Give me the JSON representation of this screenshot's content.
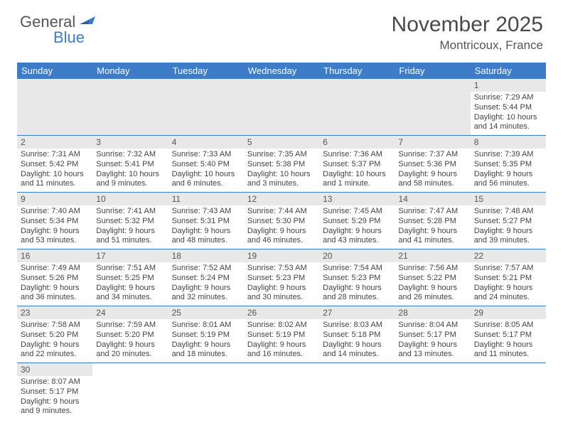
{
  "brand": {
    "general": "General",
    "blue": "Blue"
  },
  "title": "November 2025",
  "location": "Montricoux, France",
  "weekdays": [
    "Sunday",
    "Monday",
    "Tuesday",
    "Wednesday",
    "Thursday",
    "Friday",
    "Saturday"
  ],
  "colors": {
    "header_bg": "#3d7cc9",
    "daynum_bg": "#e8e8e8",
    "text": "#444444"
  },
  "days": {
    "1": {
      "sunrise": "7:29 AM",
      "sunset": "5:44 PM",
      "daylight": "10 hours and 14 minutes."
    },
    "2": {
      "sunrise": "7:31 AM",
      "sunset": "5:42 PM",
      "daylight": "10 hours and 11 minutes."
    },
    "3": {
      "sunrise": "7:32 AM",
      "sunset": "5:41 PM",
      "daylight": "10 hours and 9 minutes."
    },
    "4": {
      "sunrise": "7:33 AM",
      "sunset": "5:40 PM",
      "daylight": "10 hours and 6 minutes."
    },
    "5": {
      "sunrise": "7:35 AM",
      "sunset": "5:38 PM",
      "daylight": "10 hours and 3 minutes."
    },
    "6": {
      "sunrise": "7:36 AM",
      "sunset": "5:37 PM",
      "daylight": "10 hours and 1 minute."
    },
    "7": {
      "sunrise": "7:37 AM",
      "sunset": "5:36 PM",
      "daylight": "9 hours and 58 minutes."
    },
    "8": {
      "sunrise": "7:39 AM",
      "sunset": "5:35 PM",
      "daylight": "9 hours and 56 minutes."
    },
    "9": {
      "sunrise": "7:40 AM",
      "sunset": "5:34 PM",
      "daylight": "9 hours and 53 minutes."
    },
    "10": {
      "sunrise": "7:41 AM",
      "sunset": "5:32 PM",
      "daylight": "9 hours and 51 minutes."
    },
    "11": {
      "sunrise": "7:43 AM",
      "sunset": "5:31 PM",
      "daylight": "9 hours and 48 minutes."
    },
    "12": {
      "sunrise": "7:44 AM",
      "sunset": "5:30 PM",
      "daylight": "9 hours and 46 minutes."
    },
    "13": {
      "sunrise": "7:45 AM",
      "sunset": "5:29 PM",
      "daylight": "9 hours and 43 minutes."
    },
    "14": {
      "sunrise": "7:47 AM",
      "sunset": "5:28 PM",
      "daylight": "9 hours and 41 minutes."
    },
    "15": {
      "sunrise": "7:48 AM",
      "sunset": "5:27 PM",
      "daylight": "9 hours and 39 minutes."
    },
    "16": {
      "sunrise": "7:49 AM",
      "sunset": "5:26 PM",
      "daylight": "9 hours and 36 minutes."
    },
    "17": {
      "sunrise": "7:51 AM",
      "sunset": "5:25 PM",
      "daylight": "9 hours and 34 minutes."
    },
    "18": {
      "sunrise": "7:52 AM",
      "sunset": "5:24 PM",
      "daylight": "9 hours and 32 minutes."
    },
    "19": {
      "sunrise": "7:53 AM",
      "sunset": "5:23 PM",
      "daylight": "9 hours and 30 minutes."
    },
    "20": {
      "sunrise": "7:54 AM",
      "sunset": "5:23 PM",
      "daylight": "9 hours and 28 minutes."
    },
    "21": {
      "sunrise": "7:56 AM",
      "sunset": "5:22 PM",
      "daylight": "9 hours and 26 minutes."
    },
    "22": {
      "sunrise": "7:57 AM",
      "sunset": "5:21 PM",
      "daylight": "9 hours and 24 minutes."
    },
    "23": {
      "sunrise": "7:58 AM",
      "sunset": "5:20 PM",
      "daylight": "9 hours and 22 minutes."
    },
    "24": {
      "sunrise": "7:59 AM",
      "sunset": "5:20 PM",
      "daylight": "9 hours and 20 minutes."
    },
    "25": {
      "sunrise": "8:01 AM",
      "sunset": "5:19 PM",
      "daylight": "9 hours and 18 minutes."
    },
    "26": {
      "sunrise": "8:02 AM",
      "sunset": "5:19 PM",
      "daylight": "9 hours and 16 minutes."
    },
    "27": {
      "sunrise": "8:03 AM",
      "sunset": "5:18 PM",
      "daylight": "9 hours and 14 minutes."
    },
    "28": {
      "sunrise": "8:04 AM",
      "sunset": "5:17 PM",
      "daylight": "9 hours and 13 minutes."
    },
    "29": {
      "sunrise": "8:05 AM",
      "sunset": "5:17 PM",
      "daylight": "9 hours and 11 minutes."
    },
    "30": {
      "sunrise": "8:07 AM",
      "sunset": "5:17 PM",
      "daylight": "9 hours and 9 minutes."
    }
  },
  "layout": {
    "first_weekday_index": 6,
    "num_days": 30,
    "sunrise_prefix": "Sunrise: ",
    "sunset_prefix": "Sunset: ",
    "daylight_prefix": "Daylight: "
  }
}
